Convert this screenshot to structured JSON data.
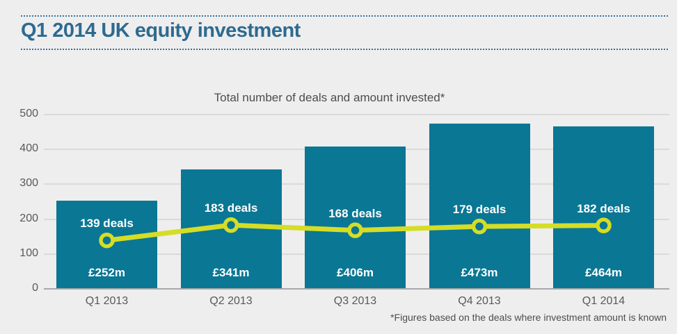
{
  "header": {
    "title": "Q1 2014 UK equity investment"
  },
  "footnote": "*Figures based on the deals where investment amount is known",
  "colors": {
    "background": "#eeeeee",
    "title_blue": "#2e6a90",
    "dotted_rule": "#39709a",
    "bar": "#0a7794",
    "line": "#d6dd26",
    "axis_text": "#58595b",
    "note_text": "#4d4d4f",
    "gridline": "#dadada",
    "axis_line": "#a6a8ab",
    "bar_label_text": "#ffffff"
  },
  "chart_data": {
    "type": "bar",
    "title": "Total number of deals and amount invested*",
    "categories": [
      "Q1 2013",
      "Q2 2013",
      "Q3 2013",
      "Q4 2013",
      "Q1 2014"
    ],
    "series": [
      {
        "name": "Amount invested (£m)",
        "type": "bar",
        "values": [
          252,
          341,
          406,
          473,
          464
        ],
        "labels": [
          "£252m",
          "£341m",
          "£406m",
          "£473m",
          "£464m"
        ],
        "color": "#0a7794"
      },
      {
        "name": "Number of deals",
        "type": "line",
        "values": [
          139,
          183,
          168,
          179,
          182
        ],
        "labels": [
          "139 deals",
          "183 deals",
          "168 deals",
          "179 deals",
          "182 deals"
        ],
        "color": "#d6dd26"
      }
    ],
    "xlabel": "",
    "ylabel": "",
    "ylim": [
      0,
      500
    ],
    "yticks": [
      0,
      100,
      200,
      300,
      400,
      500
    ],
    "grid": true,
    "legend": "none"
  }
}
